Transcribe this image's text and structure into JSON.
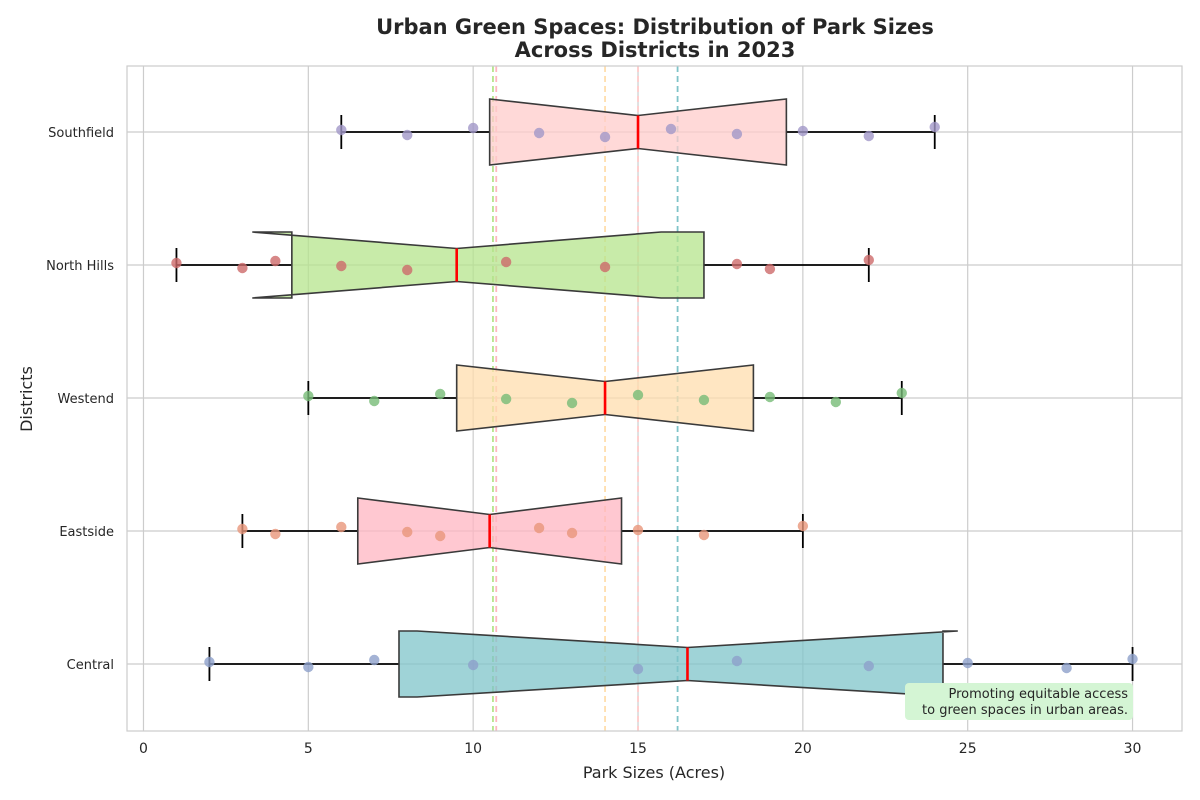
{
  "chart_data": {
    "type": "box",
    "title_line1": "Urban Green Spaces: Distribution of Park Sizes",
    "title_line2": "Across Districts in 2023",
    "xlabel": "Park Sizes (Acres)",
    "ylabel": "Districts",
    "xlim": [
      -0.5,
      31.5
    ],
    "x_ticks": [
      "0",
      "5",
      "10",
      "15",
      "20",
      "25",
      "30"
    ],
    "x_tick_values": [
      0,
      5,
      10,
      15,
      20,
      25,
      30
    ],
    "orientation": "horizontal",
    "notched": true,
    "grid": true,
    "categories": [
      "Central",
      "Eastside",
      "Westend",
      "North Hills",
      "Southfield"
    ],
    "boxes": [
      {
        "name": "Central",
        "whisker_low": 2,
        "q1": 7.75,
        "median": 16.5,
        "q3": 24.25,
        "whisker_high": 30,
        "notch_low": 8.3,
        "notch_high": 24.7,
        "color": "#7fc4c9",
        "points": [
          2,
          5,
          7,
          10,
          15,
          18,
          22,
          25,
          28,
          30
        ],
        "point_color": "#8da0cb"
      },
      {
        "name": "Eastside",
        "whisker_low": 3,
        "q1": 6.5,
        "median": 10.5,
        "q3": 14.5,
        "whisker_high": 20,
        "notch_low": 6.5,
        "notch_high": 14.5,
        "color": "#ffb6c1",
        "points": [
          3,
          4,
          6,
          8,
          9,
          12,
          13,
          15,
          17,
          20
        ],
        "point_color": "#e9967a"
      },
      {
        "name": "Westend",
        "whisker_low": 5,
        "q1": 9.5,
        "median": 14,
        "q3": 18.5,
        "whisker_high": 23,
        "notch_low": 9.5,
        "notch_high": 18.5,
        "color": "#ffdead",
        "points": [
          5,
          7,
          9,
          11,
          13,
          15,
          17,
          19,
          21,
          23
        ],
        "point_color": "#77bb77"
      },
      {
        "name": "North Hills",
        "whisker_low": 1,
        "q1": 4.5,
        "median": 9.5,
        "q3": 17,
        "whisker_high": 22,
        "notch_low": 3.3,
        "notch_high": 15.7,
        "color": "#b5e48c",
        "points": [
          1,
          3,
          4,
          6,
          8,
          11,
          14,
          18,
          19,
          22
        ],
        "point_color": "#cd6a6a"
      },
      {
        "name": "Southfield",
        "whisker_low": 6,
        "q1": 10.5,
        "median": 15,
        "q3": 19.5,
        "whisker_high": 24,
        "notch_low": 10.5,
        "notch_high": 19.5,
        "color": "#ffcccb",
        "points": [
          6,
          8,
          10,
          12,
          14,
          16,
          18,
          20,
          22,
          24
        ],
        "point_color": "#a197c8"
      }
    ],
    "mean_lines": [
      {
        "value": 16.2,
        "color": "#7fc4c9"
      },
      {
        "value": 10.7,
        "color": "#ffb6c1"
      },
      {
        "value": 14.0,
        "color": "#ffdead"
      },
      {
        "value": 10.6,
        "color": "#b5e48c"
      },
      {
        "value": 15.0,
        "color": "#ffcccb"
      }
    ],
    "annotation_line1": "Promoting equitable access",
    "annotation_line2": "to green spaces in urban areas.",
    "annotation_bg": "#d4f5d4",
    "median_color": "#ff0000",
    "grid_color": "#cccccc"
  }
}
